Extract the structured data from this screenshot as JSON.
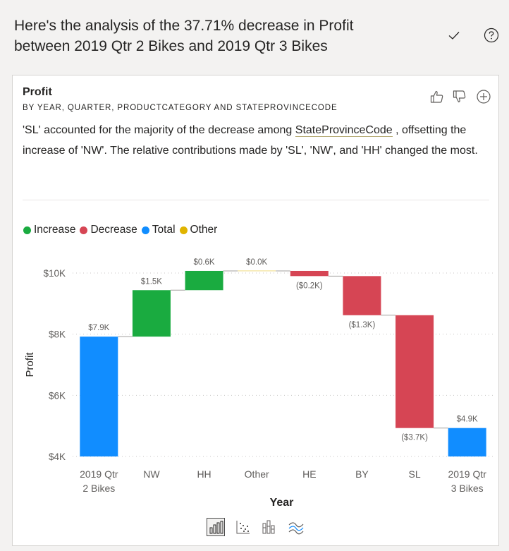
{
  "header": {
    "title": "Here's the analysis of the 37.71% decrease in Profit between 2019 Qtr 2 Bikes and 2019 Qtr 3 Bikes"
  },
  "card": {
    "title": "Profit",
    "subtitle": "BY YEAR, QUARTER, PRODUCTCATEGORY AND STATEPROVINCECODE",
    "narrative_part1": "'SL' accounted for the majority of the decrease among ",
    "narrative_link": "StateProvinceCode",
    "narrative_part2": " , offsetting the increase of 'NW'. The relative contributions made by 'SL', 'NW', and 'HH' changed the most."
  },
  "legend": {
    "items": [
      {
        "label": "Increase",
        "color": "#1aab40"
      },
      {
        "label": "Decrease",
        "color": "#d64554"
      },
      {
        "label": "Total",
        "color": "#118dff"
      },
      {
        "label": "Other",
        "color": "#e0b400"
      }
    ]
  },
  "icons": {
    "check": "checkmark-icon",
    "help": "help-icon",
    "like": "thumbs-up-icon",
    "dislike": "thumbs-down-icon",
    "add": "add-icon"
  },
  "chart_data": {
    "type": "waterfall",
    "xlabel": "Year",
    "ylabel": "Profit",
    "ylim": [
      4000,
      10000
    ],
    "yticks": [
      {
        "value": 4000,
        "label": "$4K"
      },
      {
        "value": 6000,
        "label": "$6K"
      },
      {
        "value": 8000,
        "label": "$8K"
      },
      {
        "value": 10000,
        "label": "$10K"
      }
    ],
    "categories": [
      {
        "label": [
          "2019 Qtr",
          "2 Bikes"
        ],
        "kind": "total",
        "start": 0,
        "end": 7920,
        "value_label": "$7.9K"
      },
      {
        "label": [
          "NW"
        ],
        "kind": "increase",
        "start": 7920,
        "end": 9440,
        "value_label": "$1.5K"
      },
      {
        "label": [
          "HH"
        ],
        "kind": "increase",
        "start": 9440,
        "end": 10070,
        "value_label": "$0.6K"
      },
      {
        "label": [
          "Other"
        ],
        "kind": "other",
        "start": 10070,
        "end": 10070,
        "value_label": "$0.0K"
      },
      {
        "label": [
          "HE"
        ],
        "kind": "decrease",
        "start": 10070,
        "end": 9900,
        "value_label": "($0.2K)"
      },
      {
        "label": [
          "BY"
        ],
        "kind": "decrease",
        "start": 9900,
        "end": 8620,
        "value_label": "($1.3K)"
      },
      {
        "label": [
          "SL"
        ],
        "kind": "decrease",
        "start": 8620,
        "end": 4930,
        "value_label": "($3.7K)"
      },
      {
        "label": [
          "2019 Qtr",
          "3 Bikes"
        ],
        "kind": "total",
        "start": 0,
        "end": 4930,
        "value_label": "$4.9K"
      }
    ],
    "colors": {
      "increase": "#1aab40",
      "decrease": "#d64554",
      "total": "#118dff",
      "other": "#e0b400"
    }
  },
  "viz_switcher": {
    "options": [
      "waterfall-chart-icon",
      "scatter-chart-icon",
      "column-chart-icon",
      "ribbon-chart-icon"
    ],
    "selected": "waterfall-chart-icon"
  }
}
